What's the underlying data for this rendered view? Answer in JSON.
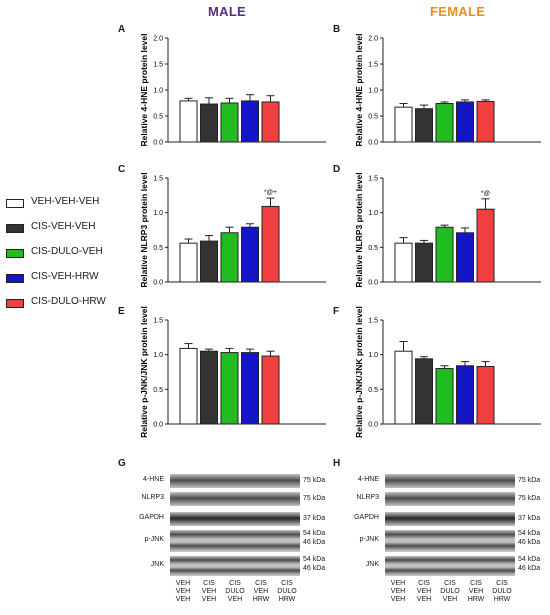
{
  "header": {
    "male": "MALE",
    "female": "FEMALE"
  },
  "colors": {
    "male_title": "#5a2d82",
    "female_title": "#e8901a"
  },
  "legend": [
    {
      "label": "VEH-VEH-VEH",
      "color": "#ffffff"
    },
    {
      "label": "CIS-VEH-VEH",
      "color": "#333333"
    },
    {
      "label": "CIS-DULO-VEH",
      "color": "#22bb22"
    },
    {
      "label": "CIS-VEH-HRW",
      "color": "#1515c8"
    },
    {
      "label": "CIS-DULO-HRW",
      "color": "#f24040"
    }
  ],
  "chart_data": [
    {
      "panel": "A",
      "type": "bar",
      "ylabel": "Relative 4-HNE protein level",
      "ylim": [
        0,
        2.0
      ],
      "yticks": [
        "0.0",
        "0.5",
        "1.0",
        "1.5",
        "2.0"
      ],
      "categories": [
        "VEH-VEH-VEH",
        "CIS-VEH-VEH",
        "CIS-DULO-VEH",
        "CIS-VEH-HRW",
        "CIS-DULO-HRW"
      ],
      "values": [
        0.79,
        0.73,
        0.75,
        0.79,
        0.77
      ],
      "errors": [
        0.05,
        0.12,
        0.09,
        0.12,
        0.12
      ],
      "annotations": [
        "",
        "",
        "",
        "",
        ""
      ]
    },
    {
      "panel": "B",
      "type": "bar",
      "ylabel": "Relative 4-HNE protein level",
      "ylim": [
        0,
        2.0
      ],
      "yticks": [
        "0.0",
        "0.5",
        "1.0",
        "1.5",
        "2.0"
      ],
      "categories": [
        "VEH-VEH-VEH",
        "CIS-VEH-VEH",
        "CIS-DULO-VEH",
        "CIS-VEH-HRW",
        "CIS-DULO-HRW"
      ],
      "values": [
        0.67,
        0.64,
        0.74,
        0.77,
        0.78
      ],
      "errors": [
        0.07,
        0.07,
        0.03,
        0.04,
        0.03
      ],
      "annotations": [
        "",
        "",
        "",
        "",
        ""
      ]
    },
    {
      "panel": "C",
      "type": "bar",
      "ylabel": "Relative NLRP3 protein level",
      "ylim": [
        0,
        1.5
      ],
      "yticks": [
        "0.0",
        "0.5",
        "1.0",
        "1.5"
      ],
      "categories": [
        "VEH-VEH-VEH",
        "CIS-VEH-VEH",
        "CIS-DULO-VEH",
        "CIS-VEH-HRW",
        "CIS-DULO-HRW"
      ],
      "values": [
        0.56,
        0.59,
        0.71,
        0.79,
        1.09
      ],
      "errors": [
        0.06,
        0.08,
        0.08,
        0.05,
        0.12
      ],
      "annotations": [
        "",
        "",
        "",
        "",
        "*@+"
      ]
    },
    {
      "panel": "D",
      "type": "bar",
      "ylabel": "Relative NLRP3 protein level",
      "ylim": [
        0,
        1.5
      ],
      "yticks": [
        "0.0",
        "0.5",
        "1.0",
        "1.5"
      ],
      "categories": [
        "VEH-VEH-VEH",
        "CIS-VEH-VEH",
        "CIS-DULO-VEH",
        "CIS-VEH-HRW",
        "CIS-DULO-HRW"
      ],
      "values": [
        0.56,
        0.56,
        0.79,
        0.71,
        1.05
      ],
      "errors": [
        0.08,
        0.04,
        0.03,
        0.07,
        0.15
      ],
      "annotations": [
        "",
        "",
        "",
        "",
        "*@"
      ]
    },
    {
      "panel": "E",
      "type": "bar",
      "ylabel": "Relative p-JNK/JNK protein level",
      "ylim": [
        0,
        1.5
      ],
      "yticks": [
        "0.0",
        "0.5",
        "1.0",
        "1.5"
      ],
      "categories": [
        "VEH-VEH-VEH",
        "CIS-VEH-VEH",
        "CIS-DULO-VEH",
        "CIS-VEH-HRW",
        "CIS-DULO-HRW"
      ],
      "values": [
        1.09,
        1.05,
        1.03,
        1.03,
        0.98
      ],
      "errors": [
        0.07,
        0.03,
        0.06,
        0.05,
        0.07
      ],
      "annotations": [
        "",
        "",
        "",
        "",
        ""
      ]
    },
    {
      "panel": "F",
      "type": "bar",
      "ylabel": "Relative p-JNK/JNK protein level",
      "ylim": [
        0,
        1.5
      ],
      "yticks": [
        "0.0",
        "0.5",
        "1.0",
        "1.5"
      ],
      "categories": [
        "VEH-VEH-VEH",
        "CIS-VEH-VEH",
        "CIS-DULO-VEH",
        "CIS-VEH-HRW",
        "CIS-DULO-HRW"
      ],
      "values": [
        1.05,
        0.94,
        0.8,
        0.84,
        0.83
      ],
      "errors": [
        0.14,
        0.03,
        0.04,
        0.06,
        0.07
      ],
      "annotations": [
        "",
        "",
        "",
        "",
        ""
      ]
    }
  ],
  "blots": [
    {
      "panel": "G",
      "rows": [
        {
          "label": "4-HNE",
          "sizes": [
            "75 kDa"
          ]
        },
        {
          "label": "NLRP3",
          "sizes": [
            "75 kDa"
          ]
        },
        {
          "label": "GAPDH",
          "sizes": [
            "37 kDa"
          ]
        },
        {
          "label": "p-JNK",
          "sizes": [
            "54 kDa",
            "46 kDa"
          ]
        },
        {
          "label": "JNK",
          "sizes": [
            "54 kDa",
            "46 kDa"
          ]
        }
      ],
      "lanes": [
        [
          "VEH",
          "VEH",
          "VEH"
        ],
        [
          "CIS",
          "VEH",
          "VEH"
        ],
        [
          "CIS",
          "DULO",
          "VEH"
        ],
        [
          "CIS",
          "VEH",
          "HRW"
        ],
        [
          "CIS",
          "DULO",
          "HRW"
        ]
      ]
    },
    {
      "panel": "H",
      "rows": [
        {
          "label": "4-HNE",
          "sizes": [
            "75 kDa"
          ]
        },
        {
          "label": "NLRP3",
          "sizes": [
            "75 kDa"
          ]
        },
        {
          "label": "GAPDH",
          "sizes": [
            "37 kDa"
          ]
        },
        {
          "label": "p-JNK",
          "sizes": [
            "54 kDa",
            "46 kDa"
          ]
        },
        {
          "label": "JNK",
          "sizes": [
            "54 kDa",
            "46 kDa"
          ]
        }
      ],
      "lanes": [
        [
          "VEH",
          "VEH",
          "VEH"
        ],
        [
          "CIS",
          "VEH",
          "VEH"
        ],
        [
          "CIS",
          "DULO",
          "VEH"
        ],
        [
          "CIS",
          "VEH",
          "HRW"
        ],
        [
          "CIS",
          "DULO",
          "HRW"
        ]
      ]
    }
  ]
}
